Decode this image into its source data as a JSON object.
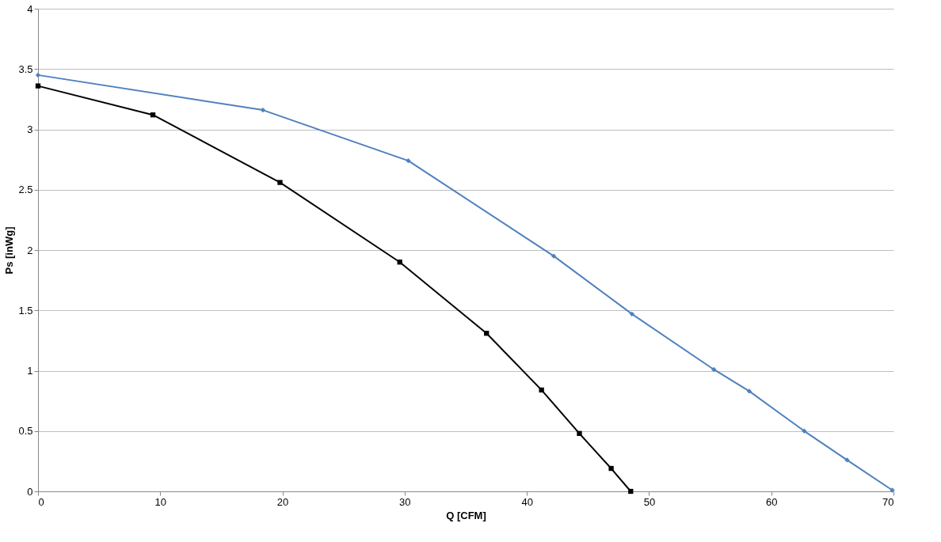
{
  "chart_data": {
    "type": "line",
    "xlabel": "Q [CFM]",
    "ylabel": "Ps [inWg]",
    "xlim": [
      0,
      70
    ],
    "xticks": [
      0,
      10,
      20,
      30,
      40,
      50,
      60,
      70
    ],
    "ylim": [
      0,
      4
    ],
    "yticks": [
      0,
      0.5,
      1,
      1.5,
      2,
      2.5,
      3,
      3.5,
      4
    ],
    "grid": "y",
    "series": [
      {
        "color": "#000000",
        "marker": "square",
        "x": [
          0,
          9.4,
          19.8,
          29.6,
          36.7,
          41.2,
          44.3,
          46.9,
          48.5
        ],
        "values": [
          3.36,
          3.12,
          2.56,
          1.9,
          1.31,
          0.84,
          0.48,
          0.19,
          0
        ]
      },
      {
        "color": "#4f81bd",
        "marker": "diamond",
        "x": [
          0,
          18.4,
          30.3,
          42.2,
          48.6,
          55.3,
          58.2,
          62.7,
          66.2,
          69.9
        ],
        "values": [
          3.45,
          3.16,
          2.74,
          1.95,
          1.47,
          1.01,
          0.83,
          0.5,
          0.26,
          0.01
        ]
      }
    ]
  }
}
